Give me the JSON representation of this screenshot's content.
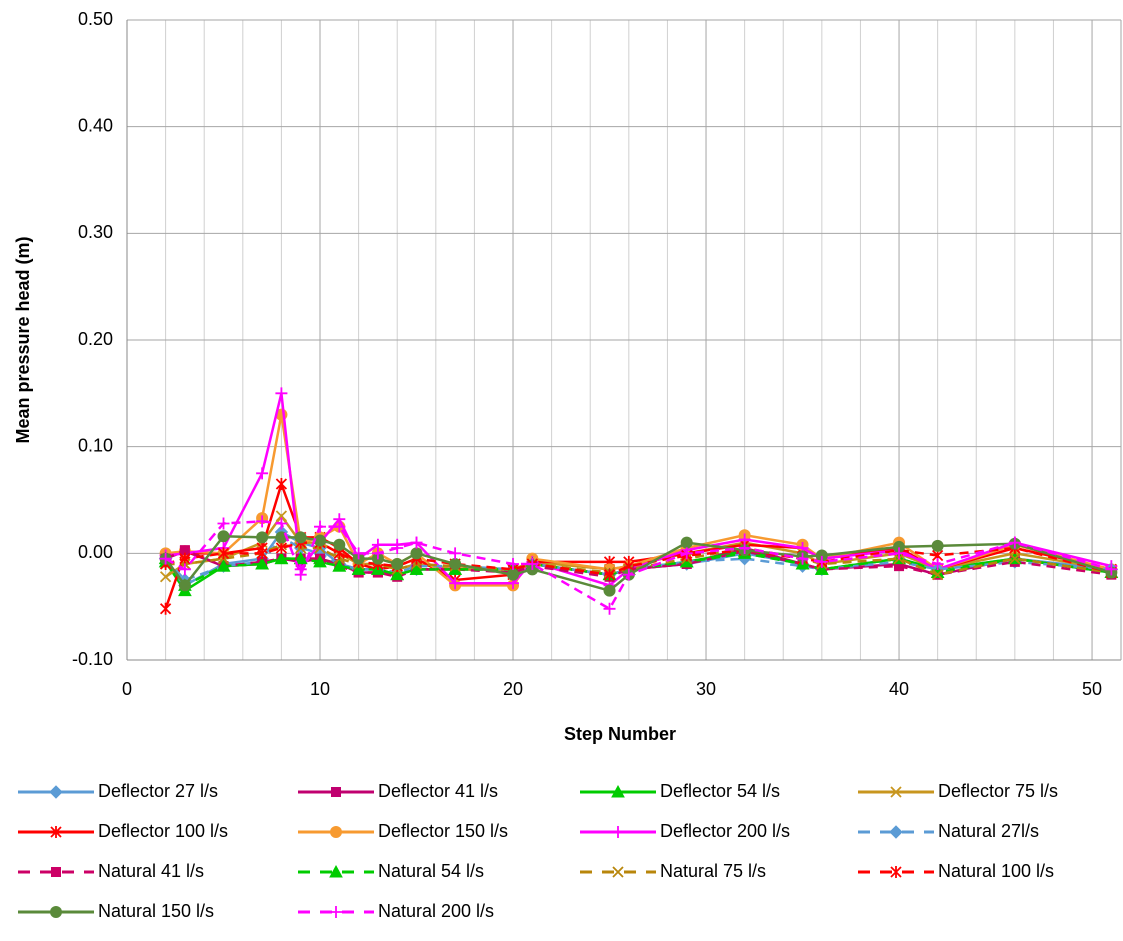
{
  "chart_data": {
    "type": "line",
    "y_label": "Mean pressure head (m)",
    "x_label": "Step Number",
    "x": [
      2,
      3,
      5,
      7,
      8,
      9,
      10,
      11,
      12,
      13,
      14,
      15,
      17,
      20,
      21,
      25,
      26,
      29,
      32,
      35,
      36,
      40,
      42,
      46,
      51
    ],
    "xlim": [
      0,
      51.5
    ],
    "xticks": [
      0,
      10,
      20,
      30,
      40,
      50
    ],
    "xminorticks": [
      2,
      4,
      6,
      8,
      12,
      14,
      16,
      18,
      22,
      24,
      26,
      28,
      32,
      34,
      36,
      38,
      42,
      44,
      46,
      48
    ],
    "ylim": [
      -0.1,
      0.5
    ],
    "yticks": [
      {
        "value": -0.1,
        "label": "-0.10"
      },
      {
        "value": 0,
        "label": "0.00"
      },
      {
        "value": 0.1,
        "label": "0.10"
      },
      {
        "value": 0.2,
        "label": "0.20"
      },
      {
        "value": 0.3,
        "label": "0.30"
      },
      {
        "value": 0.4,
        "label": "0.40"
      },
      {
        "value": 0.5,
        "label": "0.50"
      }
    ],
    "grid": true,
    "legend": "bottom",
    "series": [
      {
        "name": "Deflector 27 l/s",
        "color": "#5b9bd5",
        "marker": "diamond",
        "dash": false,
        "values": [
          -0.005,
          -0.03,
          -0.01,
          -0.005,
          0.02,
          0.01,
          0.005,
          -0.01,
          -0.015,
          -0.015,
          -0.02,
          -0.015,
          -0.015,
          -0.015,
          -0.01,
          -0.02,
          -0.015,
          -0.01,
          0.0,
          -0.01,
          -0.015,
          -0.005,
          -0.015,
          -0.005,
          -0.015
        ]
      },
      {
        "name": "Deflector 41 l/s",
        "color": "#c0006f",
        "marker": "square",
        "dash": false,
        "values": [
          -0.005,
          0.002,
          -0.012,
          -0.01,
          -0.005,
          -0.008,
          -0.005,
          -0.01,
          -0.018,
          -0.018,
          -0.02,
          -0.015,
          -0.015,
          -0.015,
          -0.01,
          -0.02,
          -0.015,
          -0.01,
          0.005,
          -0.01,
          -0.015,
          -0.01,
          -0.02,
          -0.005,
          -0.018
        ]
      },
      {
        "name": "Deflector 54 l/s",
        "color": "#00cc00",
        "marker": "triangle",
        "dash": false,
        "values": [
          -0.008,
          -0.035,
          -0.012,
          -0.01,
          -0.005,
          -0.005,
          -0.005,
          -0.012,
          -0.015,
          -0.015,
          -0.02,
          -0.015,
          -0.015,
          -0.015,
          -0.01,
          -0.02,
          -0.015,
          -0.008,
          0.002,
          -0.01,
          -0.015,
          -0.005,
          -0.015,
          -0.005,
          -0.018
        ]
      },
      {
        "name": "Deflector 75 l/s",
        "color": "#c8961e",
        "marker": "x",
        "dash": false,
        "values": [
          -0.022,
          -0.01,
          -0.005,
          0.01,
          0.035,
          0.01,
          0.01,
          0.0,
          -0.01,
          -0.01,
          -0.015,
          -0.01,
          -0.015,
          -0.015,
          -0.008,
          -0.015,
          -0.012,
          0.0,
          0.01,
          0.0,
          -0.01,
          0.0,
          -0.015,
          0.0,
          -0.015
        ]
      },
      {
        "name": "Deflector 100 l/s",
        "color": "#ff0000",
        "marker": "asterisk",
        "dash": false,
        "values": [
          -0.052,
          0.0,
          0.0,
          0.005,
          0.065,
          0.015,
          0.015,
          0.005,
          -0.01,
          -0.015,
          -0.012,
          -0.005,
          -0.025,
          -0.02,
          -0.008,
          -0.008,
          -0.008,
          0.0,
          0.008,
          0.005,
          -0.005,
          0.005,
          -0.015,
          0.005,
          -0.015
        ]
      },
      {
        "name": "Deflector 150 l/s",
        "color": "#f79a30",
        "marker": "circle",
        "dash": false,
        "values": [
          0.0,
          0.002,
          0.0,
          0.033,
          0.13,
          0.01,
          0.015,
          0.025,
          -0.01,
          0.0,
          -0.01,
          0.0,
          -0.03,
          -0.03,
          -0.005,
          -0.015,
          -0.012,
          0.005,
          0.017,
          0.008,
          -0.005,
          0.01,
          -0.015,
          0.008,
          -0.015
        ]
      },
      {
        "name": "Deflector 200 l/s",
        "color": "#ff00ff",
        "marker": "plus",
        "dash": false,
        "values": [
          -0.002,
          0.0,
          0.005,
          0.075,
          0.15,
          -0.015,
          0.01,
          0.032,
          -0.005,
          0.008,
          0.008,
          0.01,
          -0.028,
          -0.028,
          -0.008,
          -0.03,
          -0.015,
          0.003,
          0.013,
          0.005,
          -0.005,
          0.003,
          -0.015,
          0.01,
          -0.012
        ]
      },
      {
        "name": "Natural 27l/s",
        "color": "#5b9bd5",
        "marker": "diamond",
        "dash": true,
        "values": [
          -0.005,
          -0.025,
          -0.012,
          -0.008,
          0.015,
          0.005,
          0.0,
          -0.01,
          -0.015,
          -0.015,
          -0.018,
          -0.012,
          -0.012,
          -0.015,
          -0.01,
          -0.02,
          -0.015,
          -0.008,
          -0.005,
          -0.012,
          -0.015,
          -0.008,
          -0.015,
          -0.008,
          -0.015
        ]
      },
      {
        "name": "Natural 41 l/s",
        "color": "#cc0066",
        "marker": "square",
        "dash": true,
        "values": [
          -0.005,
          0.003,
          -0.012,
          -0.008,
          -0.005,
          -0.005,
          -0.005,
          -0.012,
          -0.018,
          -0.018,
          -0.022,
          -0.015,
          -0.015,
          -0.018,
          -0.012,
          -0.022,
          -0.015,
          -0.01,
          0.002,
          -0.01,
          -0.015,
          -0.012,
          -0.02,
          -0.008,
          -0.02
        ]
      },
      {
        "name": "Natural 54 l/s",
        "color": "#00cc00",
        "marker": "triangle",
        "dash": true,
        "values": [
          -0.005,
          -0.03,
          -0.012,
          -0.01,
          -0.005,
          -0.005,
          -0.008,
          -0.012,
          -0.015,
          -0.015,
          -0.02,
          -0.015,
          -0.015,
          -0.015,
          -0.01,
          -0.02,
          -0.015,
          -0.008,
          0.0,
          -0.01,
          -0.015,
          -0.005,
          -0.018,
          -0.005,
          -0.018
        ]
      },
      {
        "name": "Natural 75 l/s",
        "color": "#b8860b",
        "marker": "x",
        "dash": true,
        "values": [
          -0.01,
          -0.01,
          -0.005,
          0.0,
          0.008,
          0.005,
          0.005,
          -0.005,
          -0.01,
          -0.01,
          -0.015,
          -0.01,
          -0.012,
          -0.015,
          -0.01,
          -0.018,
          -0.015,
          -0.005,
          0.005,
          -0.005,
          -0.01,
          -0.005,
          -0.02,
          -0.005,
          -0.018
        ]
      },
      {
        "name": "Natural 100 l/s",
        "color": "#ff0000",
        "marker": "asterisk",
        "dash": true,
        "values": [
          -0.01,
          -0.005,
          0.0,
          0.0,
          0.005,
          0.01,
          0.01,
          0.0,
          -0.008,
          -0.01,
          -0.012,
          -0.005,
          -0.01,
          -0.015,
          -0.01,
          -0.02,
          -0.012,
          -0.002,
          0.003,
          -0.005,
          -0.008,
          0.003,
          -0.002,
          0.005,
          -0.018
        ]
      },
      {
        "name": "Natural 150 l/s",
        "color": "#5a8a3a",
        "marker": "circle",
        "dash": false,
        "values": [
          -0.005,
          -0.03,
          0.016,
          0.015,
          0.015,
          0.015,
          0.012,
          0.008,
          -0.005,
          -0.005,
          -0.01,
          0.0,
          -0.01,
          -0.02,
          -0.015,
          -0.035,
          -0.02,
          0.01,
          0.003,
          -0.003,
          -0.002,
          0.006,
          0.007,
          0.009,
          -0.018
        ]
      },
      {
        "name": "Natural 200 l/s",
        "color": "#ff00ff",
        "marker": "plus",
        "dash": true,
        "values": [
          -0.005,
          -0.015,
          0.028,
          0.03,
          0.028,
          -0.02,
          0.025,
          0.025,
          0.0,
          0.0,
          0.005,
          0.01,
          0.0,
          -0.01,
          -0.01,
          -0.052,
          -0.02,
          0.0,
          0.005,
          -0.005,
          -0.008,
          0.0,
          -0.01,
          0.01,
          -0.015
        ]
      }
    ]
  }
}
